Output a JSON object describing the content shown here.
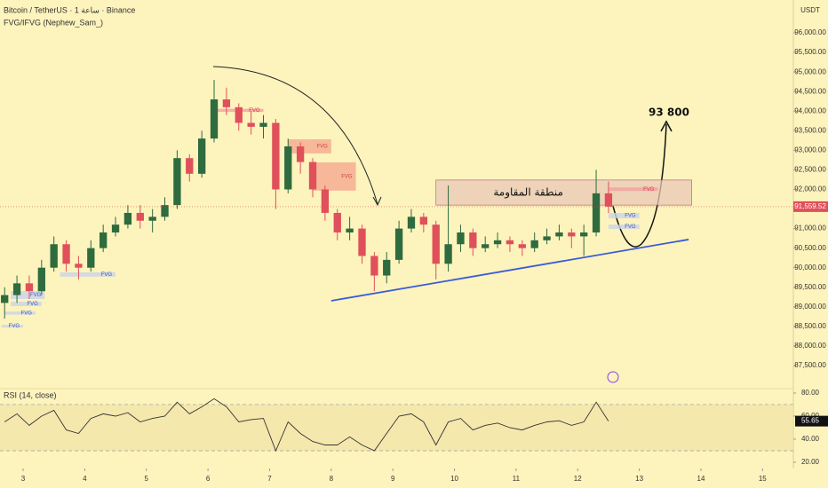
{
  "chart_data": {
    "type": "candlestick",
    "title": "Bitcoin / TetherUS · 1 ساعة · Binance",
    "subtitle": "FVG/IFVG (Nephew_Sam_)",
    "currency": "USDT",
    "x": [
      2.7,
      2.9,
      3.1,
      3.3,
      3.5,
      3.7,
      3.9,
      4.1,
      4.3,
      4.5,
      4.7,
      4.9,
      5.1,
      5.3,
      5.5,
      5.7,
      5.9,
      6.1,
      6.3,
      6.5,
      6.7,
      6.9,
      7.1,
      7.3,
      7.5,
      7.7,
      7.9,
      8.1,
      8.3,
      8.5,
      8.7,
      8.9,
      9.1,
      9.3,
      9.5,
      9.7,
      9.9,
      10.1,
      10.3,
      10.5,
      10.7,
      10.9,
      11.1,
      11.3,
      11.5,
      11.7,
      11.9,
      12.1,
      12.3,
      12.5
    ],
    "open": [
      89100,
      89300,
      89600,
      89400,
      90000,
      90600,
      90100,
      90000,
      90500,
      90900,
      91100,
      91400,
      91200,
      91300,
      91600,
      92800,
      92400,
      93300,
      94300,
      94100,
      93700,
      93600,
      93700,
      92000,
      93100,
      92700,
      92000,
      91400,
      90900,
      91000,
      90300,
      89800,
      90200,
      91000,
      91300,
      91100,
      90100,
      90600,
      90900,
      90500,
      90600,
      90700,
      90600,
      90500,
      90700,
      90800,
      90900,
      90800,
      90900,
      91900
    ],
    "high": [
      89500,
      89800,
      89800,
      90200,
      90800,
      90700,
      90300,
      90700,
      91100,
      91300,
      91600,
      91600,
      91500,
      91800,
      93000,
      92900,
      93500,
      94800,
      94600,
      94200,
      94000,
      93900,
      93800,
      93300,
      93200,
      92800,
      92100,
      91500,
      91300,
      91100,
      90400,
      90400,
      91200,
      91500,
      91400,
      91200,
      92100,
      91100,
      91000,
      90800,
      90900,
      90800,
      90700,
      90900,
      91000,
      91100,
      91000,
      91100,
      92500,
      92200
    ],
    "low": [
      88700,
      89100,
      89200,
      89300,
      89900,
      89900,
      89700,
      89900,
      90400,
      90800,
      91000,
      91000,
      90900,
      91200,
      91500,
      92200,
      92300,
      93200,
      93900,
      93500,
      93400,
      93300,
      91500,
      91900,
      92400,
      91800,
      91200,
      90700,
      90700,
      90100,
      89400,
      89600,
      90100,
      90900,
      90900,
      89700,
      89900,
      90400,
      90300,
      90400,
      90500,
      90400,
      90300,
      90400,
      90600,
      90700,
      90500,
      90300,
      90800,
      91400
    ],
    "close": [
      89300,
      89600,
      89400,
      90000,
      90600,
      90100,
      90000,
      90500,
      90900,
      91100,
      91400,
      91200,
      91300,
      91600,
      92800,
      92400,
      93300,
      94300,
      94100,
      93700,
      93600,
      93700,
      92000,
      93100,
      92700,
      92000,
      91400,
      90900,
      91000,
      90300,
      89800,
      90200,
      91000,
      91300,
      91100,
      90100,
      90600,
      90900,
      90500,
      90600,
      90700,
      90600,
      90500,
      90700,
      90800,
      90900,
      90800,
      90900,
      91900,
      91560
    ],
    "colors": {
      "up": "#2e6b3f",
      "down": "#e0505a"
    },
    "xlim": [
      2.625,
      15.5
    ],
    "xticks": [
      3,
      4,
      5,
      6,
      7,
      8,
      9,
      10,
      11,
      12,
      13,
      14,
      15
    ],
    "ylim": [
      86910,
      96840
    ],
    "yticks": [
      {
        "value": 87500,
        "label": "87,500.00"
      },
      {
        "value": 88000,
        "label": "88,000.00"
      },
      {
        "value": 88500,
        "label": "88,500.00"
      },
      {
        "value": 89000,
        "label": "89,000.00"
      },
      {
        "value": 89500,
        "label": "89,500.00"
      },
      {
        "value": 90000,
        "label": "90,000.00"
      },
      {
        "value": 90500,
        "label": "90,500.00"
      },
      {
        "value": 91000,
        "label": "91,000.00"
      },
      {
        "value": 91500,
        "label": "91,500.00"
      },
      {
        "value": 92000,
        "label": "92,000.00"
      },
      {
        "value": 92500,
        "label": "92,500.00"
      },
      {
        "value": 93000,
        "label": "93,000.00"
      },
      {
        "value": 93500,
        "label": "93,500.00"
      },
      {
        "value": 94000,
        "label": "94,000.00"
      },
      {
        "value": 94500,
        "label": "94,500.00"
      },
      {
        "value": 95000,
        "label": "95,000.00"
      },
      {
        "value": 95500,
        "label": "95,500.00"
      },
      {
        "value": 96000,
        "label": "96,000.00"
      }
    ],
    "last_price": {
      "value": 91559.52,
      "label": "91,559.52"
    },
    "fvg_zones": [
      {
        "label": "FVG",
        "x": [
          6.1,
          6.9
        ],
        "y": [
          93980,
          94060
        ],
        "color": "#f4a0a0"
      },
      {
        "label": "FVG",
        "x": [
          7.3,
          8.0
        ],
        "y": [
          92920,
          93280
        ],
        "color": "#f4a98f"
      },
      {
        "label": "FVG",
        "x": [
          7.7,
          8.4
        ],
        "y": [
          91970,
          92690
        ],
        "color": "#f4a98f"
      },
      {
        "label": "FVG",
        "x": [
          12.5,
          13.3
        ],
        "y": [
          91960,
          92050
        ],
        "color": "#f4a0a0"
      },
      {
        "label": "FVG",
        "x": [
          12.5,
          13.0
        ],
        "y": [
          91260,
          91400
        ],
        "color": "#c9d3e8"
      },
      {
        "label": "FVG",
        "x": [
          12.5,
          13.0
        ],
        "y": [
          90990,
          91100
        ],
        "color": "#c9d3e8"
      },
      {
        "label": "FVG",
        "x": [
          3.6,
          4.5
        ],
        "y": [
          89770,
          89880
        ],
        "color": "#c9d3e8"
      },
      {
        "label": "FVG",
        "x": [
          2.8,
          3.35
        ],
        "y": [
          89200,
          89400
        ],
        "color": "#c9d3e8"
      },
      {
        "label": "FVG",
        "x": [
          2.8,
          3.3
        ],
        "y": [
          89020,
          89130
        ],
        "color": "#c9d3e8"
      },
      {
        "label": "FVG",
        "x": [
          2.7,
          3.2
        ],
        "y": [
          88800,
          88880
        ],
        "color": "#c9d3e8"
      },
      {
        "label": "FVG",
        "x": [
          2.65,
          3.0
        ],
        "y": [
          88470,
          88540
        ],
        "color": "#c9d3e8"
      }
    ],
    "resistance_zone": {
      "label": "منطقة المقاومة",
      "x": [
        9.7,
        13.85
      ],
      "y": [
        91600,
        92240
      ],
      "color": "#e8c8b8"
    },
    "trendline": {
      "x": [
        8.0,
        13.8
      ],
      "y": [
        89155,
        90720
      ],
      "color": "#3a5bd9"
    },
    "target": {
      "label": "93 800"
    },
    "rsi": {
      "title": "RSI (14, close)",
      "values": [
        55,
        62,
        52,
        60,
        65,
        48,
        45,
        58,
        62,
        60,
        63,
        55,
        58,
        60,
        72,
        62,
        68,
        75,
        68,
        55,
        57,
        58,
        30,
        55,
        45,
        38,
        35,
        35,
        42,
        35,
        30,
        45,
        60,
        62,
        55,
        35,
        55,
        58,
        48,
        52,
        54,
        50,
        48,
        52,
        55,
        56,
        52,
        55,
        72,
        55.65
      ],
      "color": "#333333",
      "ylim": [
        14.6,
        83.8
      ],
      "yticks": [
        {
          "value": 20,
          "label": "20.00"
        },
        {
          "value": 40,
          "label": "40.00"
        },
        {
          "value": 60,
          "label": "60.00"
        },
        {
          "value": 80,
          "label": "80.00"
        }
      ],
      "band": [
        30,
        70
      ],
      "last": 55.65
    }
  }
}
